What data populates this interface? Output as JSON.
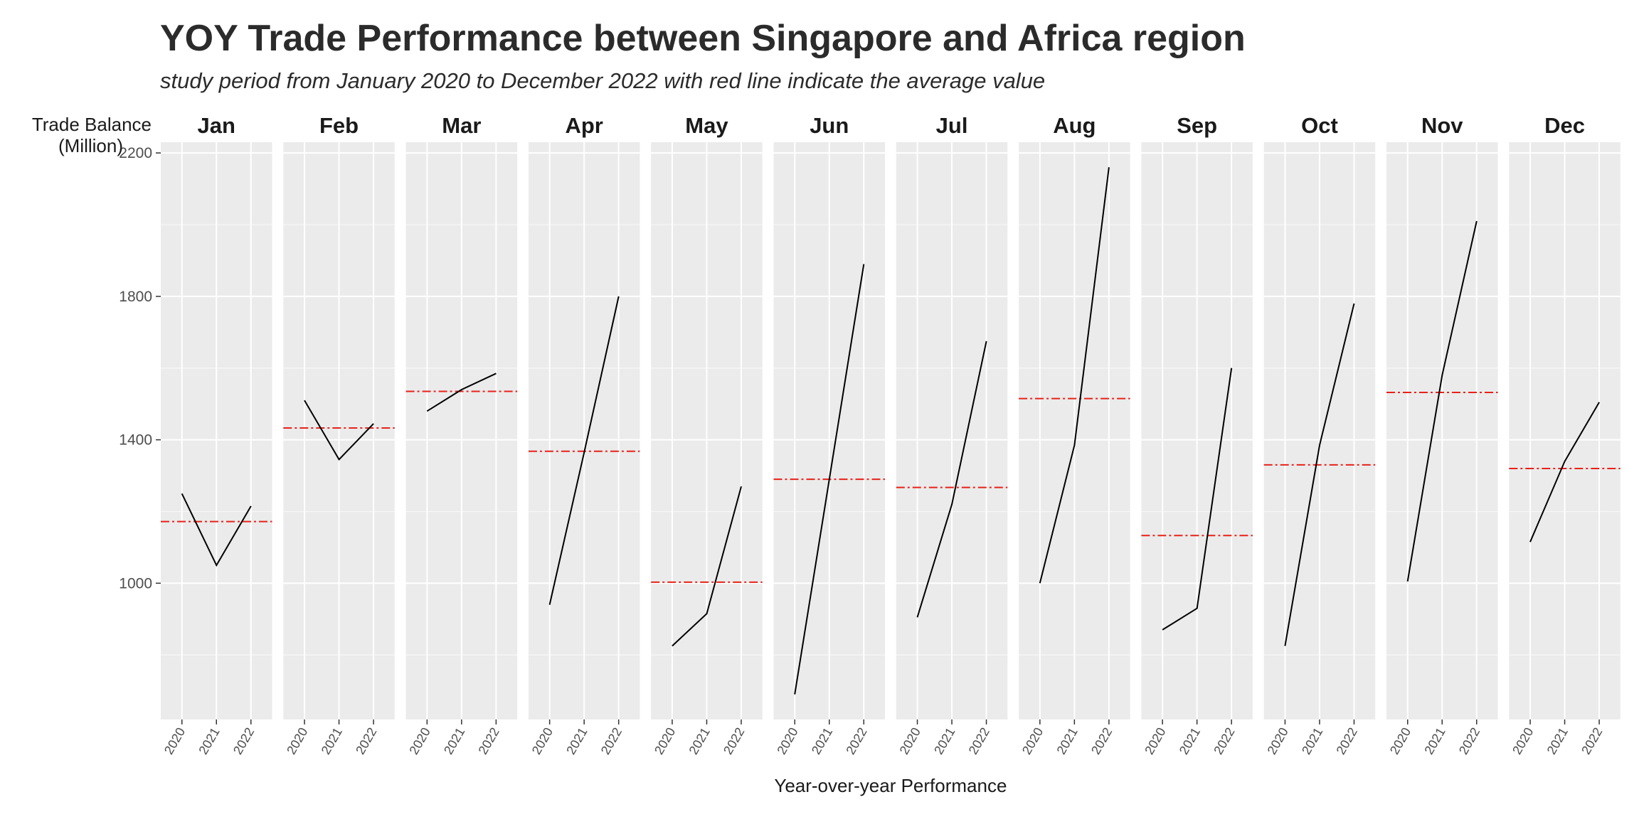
{
  "title": "YOY Trade Performance between Singapore and Africa region",
  "subtitle": "study period from January 2020 to December 2022 with red line indicate the average value",
  "colors": {
    "panel_background": "#ebebeb",
    "grid": "#ffffff",
    "series_line": "#000000",
    "average_line": "#e8221a"
  },
  "chart_data": {
    "type": "line",
    "faceted_by": "month",
    "xlabel": "Year-over-year Performance",
    "ylabel": "Trade Balance\n(Million)",
    "x": [
      "2020",
      "2021",
      "2022"
    ],
    "ylim": [
      620,
      2230
    ],
    "yticks": [
      1000,
      1400,
      1800,
      2200
    ],
    "grid": true,
    "reference_line": "average value (red dashed)",
    "facets": [
      {
        "month": "Jan",
        "values": [
          1250,
          1050,
          1215
        ],
        "average": 1172
      },
      {
        "month": "Feb",
        "values": [
          1510,
          1345,
          1445
        ],
        "average": 1433
      },
      {
        "month": "Mar",
        "values": [
          1480,
          1540,
          1585
        ],
        "average": 1535
      },
      {
        "month": "Apr",
        "values": [
          940,
          1365,
          1800
        ],
        "average": 1368
      },
      {
        "month": "May",
        "values": [
          825,
          915,
          1270
        ],
        "average": 1003
      },
      {
        "month": "Jun",
        "values": [
          690,
          1290,
          1890
        ],
        "average": 1290
      },
      {
        "month": "Jul",
        "values": [
          905,
          1220,
          1675
        ],
        "average": 1267
      },
      {
        "month": "Aug",
        "values": [
          1000,
          1385,
          2160
        ],
        "average": 1515
      },
      {
        "month": "Sep",
        "values": [
          870,
          930,
          1600
        ],
        "average": 1133
      },
      {
        "month": "Oct",
        "values": [
          825,
          1385,
          1780
        ],
        "average": 1330
      },
      {
        "month": "Nov",
        "values": [
          1005,
          1580,
          2010
        ],
        "average": 1532
      },
      {
        "month": "Dec",
        "values": [
          1115,
          1340,
          1505
        ],
        "average": 1320
      }
    ]
  }
}
